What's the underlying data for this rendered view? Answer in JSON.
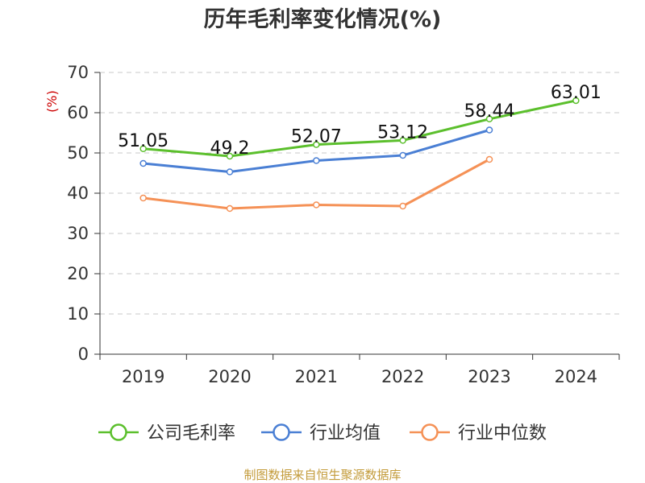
{
  "chart_data": {
    "type": "line",
    "title": "历年毛利率变化情况(%)",
    "ylabel": "(%)",
    "xlabel": "",
    "categories": [
      "2019",
      "2020",
      "2021",
      "2022",
      "2023",
      "2024"
    ],
    "ylim": [
      0,
      70
    ],
    "yticks": [
      0,
      10,
      20,
      30,
      40,
      50,
      60,
      70
    ],
    "grid": true,
    "legend_position": "bottom",
    "series": [
      {
        "name": "公司毛利率",
        "color": "#5bbf2c",
        "values": [
          51.05,
          49.2,
          52.07,
          53.12,
          58.44,
          63.01
        ],
        "labels": [
          "51.05",
          "49.2",
          "52.07",
          "53.12",
          "58.44",
          "63.01"
        ]
      },
      {
        "name": "行业均值",
        "color": "#4a7fd4",
        "values": [
          47.4,
          45.3,
          48.1,
          49.4,
          55.7,
          null
        ]
      },
      {
        "name": "行业中位数",
        "color": "#f59156",
        "values": [
          38.8,
          36.2,
          37.1,
          36.8,
          48.4,
          null
        ]
      }
    ]
  },
  "source": "制图数据来自恒生聚源数据库"
}
